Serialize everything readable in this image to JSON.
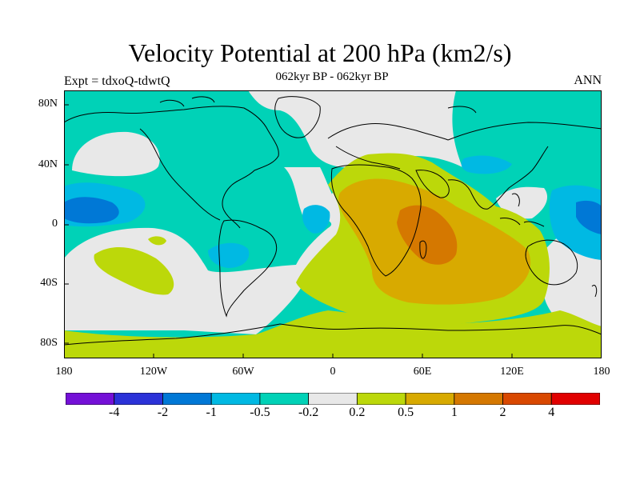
{
  "title": "Velocity Potential at 200 hPa (km2/s)",
  "subtitle": "062kyr BP - 062kyr BP",
  "left_label": "Expt = tdxoQ-tdwtQ",
  "right_label": "ANN",
  "map": {
    "projection": "cylindrical equidistant",
    "lat_labels": [
      "80N",
      "40N",
      "0",
      "40S",
      "80S"
    ],
    "lon_labels": [
      "180",
      "120W",
      "60W",
      "0",
      "60E",
      "120E",
      "180"
    ],
    "field_colors": {
      "strong_negative": "#0078d6",
      "moderate_negative": "#00b9e3",
      "weak_negative": "#00d2b7",
      "near_zero": "#e8e8e8",
      "weak_positive": "#bcd80a",
      "moderate_positive": "#d8aa00",
      "strong_positive": "#d57800"
    }
  },
  "colorbar": {
    "colors": [
      "#7410d7",
      "#2b32d8",
      "#0078d6",
      "#00b9e3",
      "#00d2b7",
      "#e8e8e8",
      "#bcd80a",
      "#d8aa00",
      "#d57800",
      "#d94800",
      "#e10000"
    ],
    "labels": [
      "-4",
      "-2",
      "-1",
      "-0.5",
      "-0.2",
      "0.2",
      "0.5",
      "1",
      "2",
      "4"
    ]
  }
}
